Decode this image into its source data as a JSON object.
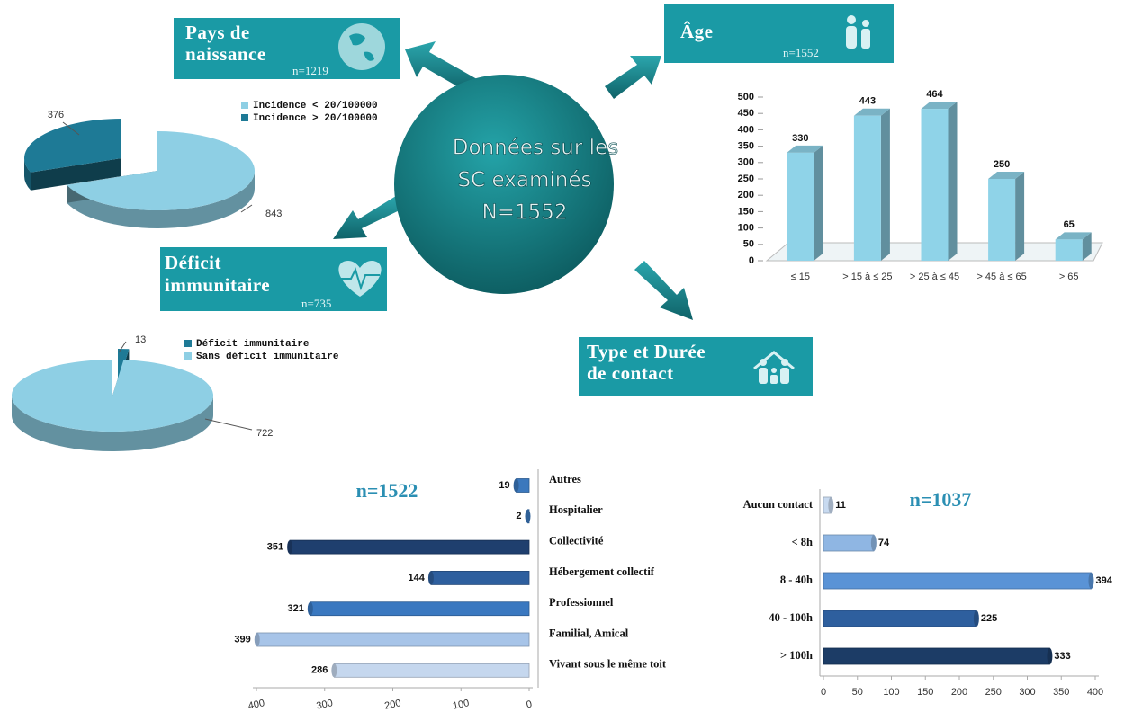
{
  "center": {
    "lines": [
      "Données sur les",
      "SC examinés",
      "N=1552"
    ]
  },
  "boxes": [
    {
      "title": [
        "Pays de",
        "naissance"
      ],
      "n": "n=1219"
    },
    {
      "title": [
        "Âge"
      ],
      "n": "n=1552"
    },
    {
      "title": [
        "Déficit",
        "immunitaire"
      ],
      "n": "n=735"
    },
    {
      "title": [
        "Type et Durée",
        "de contact"
      ]
    }
  ],
  "chart_data": [
    {
      "type": "pie",
      "categories": [
        "Incidence < 20/100000",
        "Incidence > 20/100000"
      ],
      "values": [
        843,
        376
      ],
      "colors": [
        "#8ecfe4",
        "#1e7a96"
      ],
      "legend": "top-right"
    },
    {
      "type": "pie",
      "categories": [
        "Déficit immunitaire",
        "Sans déficit immunitaire"
      ],
      "values": [
        13,
        722
      ],
      "colors": [
        "#1e7a96",
        "#8ecfe4"
      ],
      "legend": "top-right"
    },
    {
      "type": "bar",
      "categories": [
        "≤ 15",
        "> 15 à ≤ 25",
        "> 25 à ≤ 45",
        "> 45 à ≤ 65",
        "> 65"
      ],
      "values": [
        330,
        443,
        464,
        250,
        65
      ],
      "color": "#8fd3e8",
      "ylim": [
        0,
        500
      ],
      "yticks": [
        0,
        50,
        100,
        150,
        200,
        250,
        300,
        350,
        400,
        450,
        500
      ]
    },
    {
      "type": "barh",
      "title": "n=1522",
      "categories": [
        "Autres",
        "Hospitalier",
        "Collectivité",
        "Hébergement collectif",
        "Professionnel",
        "Familial, Amical",
        "Vivant sous le même toit"
      ],
      "values": [
        19,
        2,
        351,
        144,
        321,
        399,
        286
      ],
      "colors": [
        "#3b78bd",
        "#3b78bd",
        "#1f3f6e",
        "#2e5f9e",
        "#3a78c0",
        "#a7c4e8",
        "#c5d7ee"
      ],
      "xlim": [
        0,
        400
      ],
      "xticks": [
        0,
        100,
        200,
        300,
        400
      ],
      "reverse_x": true
    },
    {
      "type": "barh",
      "title": "n=1037",
      "categories": [
        "Aucun contact",
        "< 8h",
        "8 - 40h",
        "40 - 100h",
        "> 100h"
      ],
      "values": [
        11,
        74,
        394,
        225,
        333
      ],
      "colors": [
        "#c8daf0",
        "#8fb6e3",
        "#5a93d6",
        "#2e5f9e",
        "#1c3c66"
      ],
      "xlim": [
        0,
        400
      ],
      "xticks": [
        0,
        50,
        100,
        150,
        200,
        250,
        300,
        350,
        400
      ],
      "reverse_x": false
    }
  ]
}
